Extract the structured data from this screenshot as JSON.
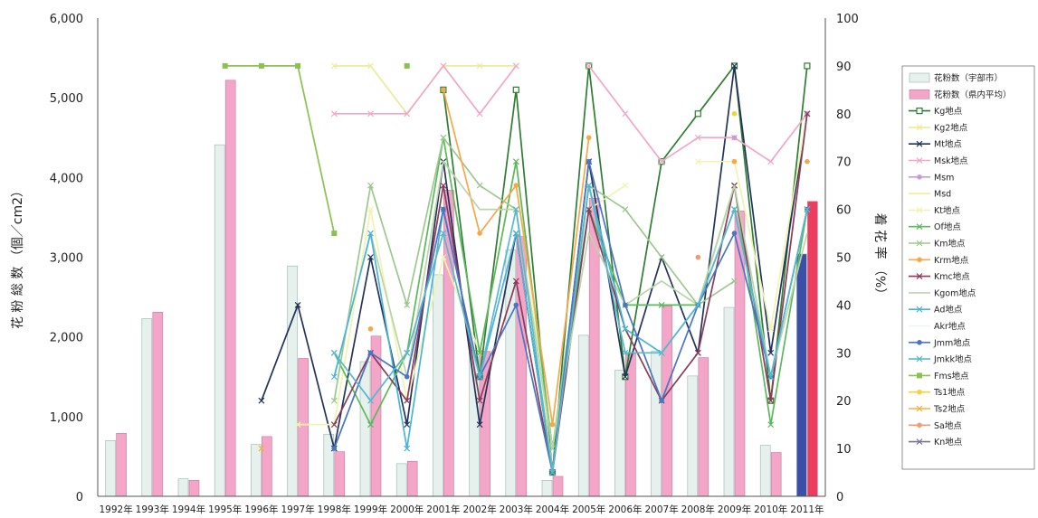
{
  "chart_data": {
    "type": "bar",
    "categories": [
      "1992年",
      "1993年",
      "1994年",
      "1995年",
      "1996年",
      "1997年",
      "1998年",
      "1999年",
      "2000年",
      "2001年",
      "2002年",
      "2003年",
      "2004年",
      "2005年",
      "2006年",
      "2007年",
      "2008年",
      "2009年",
      "2010年",
      "2011年"
    ],
    "ylabel": "花 粉 総 数 （個／cm2）",
    "y2label": "着 花 率 （%）",
    "ylim": [
      0,
      6000
    ],
    "y2lim": [
      0,
      100
    ],
    "yticks": [
      "0",
      "1,000",
      "2,000",
      "3,000",
      "4,000",
      "5,000",
      "6,000"
    ],
    "y2ticks": [
      "0",
      "10",
      "20",
      "30",
      "40",
      "50",
      "60",
      "70",
      "80",
      "90",
      "100"
    ],
    "grid": false,
    "legend_position": "right",
    "bar_series": [
      {
        "name": "花粉数（宇部市）",
        "color": "#e6f0ec",
        "edge": "#9bb5ad",
        "values": [
          700,
          2230,
          220,
          4410,
          650,
          2890,
          780,
          1690,
          410,
          2780,
          1830,
          3090,
          200,
          2020,
          1580,
          1820,
          1510,
          2370,
          640,
          3040
        ]
      },
      {
        "name": "花粉数（県内平均）",
        "color": "#f3a6c8",
        "edge": "#c8799c",
        "values": [
          790,
          2310,
          200,
          5220,
          750,
          1730,
          560,
          2010,
          440,
          3840,
          1820,
          3260,
          250,
          3740,
          1790,
          2390,
          1740,
          3580,
          550,
          3700
        ]
      }
    ],
    "line_series": [
      {
        "name": "Kg地点",
        "color": "#2e7d32",
        "marker": "square-open",
        "values": [
          null,
          null,
          null,
          null,
          null,
          null,
          null,
          null,
          null,
          85,
          25,
          85,
          5,
          90,
          25,
          70,
          80,
          90,
          20,
          90
        ]
      },
      {
        "name": "Kg2地点",
        "color": "#ecec9a",
        "marker": "x",
        "values": [
          null,
          null,
          null,
          null,
          null,
          null,
          90,
          90,
          80,
          90,
          90,
          90,
          null,
          null,
          null,
          null,
          null,
          null,
          null,
          null
        ]
      },
      {
        "name": "Mt地点",
        "color": "#22335a",
        "marker": "x",
        "values": [
          null,
          null,
          null,
          null,
          20,
          40,
          10,
          50,
          15,
          70,
          15,
          55,
          5,
          70,
          25,
          50,
          30,
          90,
          30,
          80
        ]
      },
      {
        "name": "Msk地点",
        "color": "#f0a8c8",
        "marker": "x",
        "values": [
          null,
          null,
          null,
          null,
          null,
          null,
          80,
          80,
          80,
          90,
          80,
          90,
          null,
          90,
          80,
          70,
          75,
          75,
          70,
          80
        ]
      },
      {
        "name": "Msm",
        "color": "#c69bd8",
        "marker": "circle",
        "values": [
          null,
          null,
          null,
          null,
          null,
          null,
          null,
          null,
          null,
          null,
          null,
          null,
          null,
          null,
          null,
          null,
          null,
          75,
          null,
          80
        ]
      },
      {
        "name": "Msd",
        "color": "#f6eb9a",
        "marker": "none",
        "values": [
          null,
          null,
          null,
          null,
          null,
          null,
          null,
          null,
          null,
          null,
          null,
          null,
          null,
          null,
          null,
          null,
          null,
          null,
          null,
          null
        ]
      },
      {
        "name": "Kt地点",
        "color": "#f0f4b0",
        "marker": "x",
        "values": [
          null,
          null,
          null,
          null,
          null,
          15,
          15,
          60,
          20,
          50,
          30,
          70,
          5,
          60,
          65,
          null,
          70,
          70,
          35,
          80
        ]
      },
      {
        "name": "Of地点",
        "color": "#5cb85c",
        "marker": "x",
        "values": [
          null,
          null,
          null,
          null,
          null,
          null,
          30,
          15,
          30,
          75,
          30,
          70,
          10,
          60,
          40,
          40,
          40,
          65,
          15,
          60
        ]
      },
      {
        "name": "Km地点",
        "color": "#9dc88d",
        "marker": "x",
        "values": [
          null,
          null,
          null,
          null,
          null,
          null,
          20,
          65,
          40,
          75,
          65,
          60,
          10,
          65,
          60,
          50,
          40,
          45,
          null,
          null
        ]
      },
      {
        "name": "Krm地点",
        "color": "#f5a84a",
        "marker": "circle",
        "values": [
          null,
          null,
          null,
          null,
          null,
          null,
          null,
          35,
          null,
          85,
          55,
          65,
          15,
          75,
          null,
          null,
          null,
          70,
          null,
          70
        ]
      },
      {
        "name": "Kmc地点",
        "color": "#8a3a5a",
        "marker": "x",
        "values": [
          null,
          null,
          null,
          null,
          null,
          null,
          15,
          30,
          20,
          65,
          20,
          45,
          5,
          60,
          35,
          20,
          30,
          65,
          20,
          80
        ]
      },
      {
        "name": "Kgom地点",
        "color": "#b9d6a8",
        "marker": "none",
        "values": [
          null,
          null,
          null,
          null,
          null,
          null,
          25,
          55,
          25,
          70,
          60,
          60,
          10,
          55,
          40,
          45,
          40,
          65,
          25,
          55
        ]
      },
      {
        "name": "Ad地点",
        "color": "#4ab4d4",
        "marker": "x",
        "values": [
          null,
          null,
          null,
          null,
          null,
          null,
          25,
          55,
          10,
          60,
          25,
          55,
          5,
          65,
          35,
          30,
          40,
          60,
          25,
          60
        ]
      },
      {
        "name": "Akr地点",
        "color": "#eef3f8",
        "marker": "none",
        "values": [
          null,
          null,
          null,
          null,
          null,
          null,
          null,
          75,
          null,
          null,
          null,
          null,
          null,
          null,
          null,
          null,
          null,
          null,
          null,
          null
        ]
      },
      {
        "name": "Jmm地点",
        "color": "#4a74c4",
        "marker": "circle",
        "values": [
          null,
          null,
          null,
          null,
          null,
          null,
          10,
          30,
          25,
          60,
          25,
          40,
          5,
          70,
          40,
          20,
          40,
          55,
          25,
          60
        ]
      },
      {
        "name": "Jmkk地点",
        "color": "#58b8cc",
        "marker": "x",
        "values": [
          null,
          null,
          null,
          null,
          null,
          null,
          30,
          20,
          30,
          55,
          25,
          60,
          5,
          65,
          30,
          30,
          40,
          60,
          25,
          60
        ]
      },
      {
        "name": "Fms地点",
        "color": "#8cc152",
        "marker": "square",
        "values": [
          null,
          null,
          null,
          90,
          90,
          90,
          55,
          null,
          90,
          null,
          null,
          null,
          null,
          null,
          null,
          null,
          null,
          null,
          null,
          null
        ]
      },
      {
        "name": "Ts1地点",
        "color": "#f4d23c",
        "marker": "circle",
        "values": [
          null,
          null,
          null,
          null,
          null,
          null,
          null,
          null,
          null,
          null,
          null,
          null,
          null,
          null,
          null,
          null,
          null,
          80,
          null,
          null
        ]
      },
      {
        "name": "Ts2地点",
        "color": "#f2b33d",
        "marker": "x",
        "values": [
          null,
          null,
          null,
          null,
          10,
          null,
          null,
          null,
          null,
          null,
          null,
          null,
          null,
          null,
          null,
          null,
          null,
          null,
          null,
          null
        ]
      },
      {
        "name": "Sa地点",
        "color": "#f39a72",
        "marker": "circle",
        "values": [
          null,
          null,
          null,
          null,
          null,
          null,
          null,
          null,
          null,
          null,
          null,
          null,
          null,
          null,
          null,
          null,
          50,
          null,
          null,
          null
        ]
      },
      {
        "name": "Kn地点",
        "color": "#777799",
        "marker": "x",
        "values": [
          null,
          null,
          null,
          null,
          null,
          null,
          null,
          null,
          null,
          null,
          null,
          null,
          null,
          null,
          null,
          null,
          null,
          null,
          null,
          null
        ]
      }
    ]
  }
}
